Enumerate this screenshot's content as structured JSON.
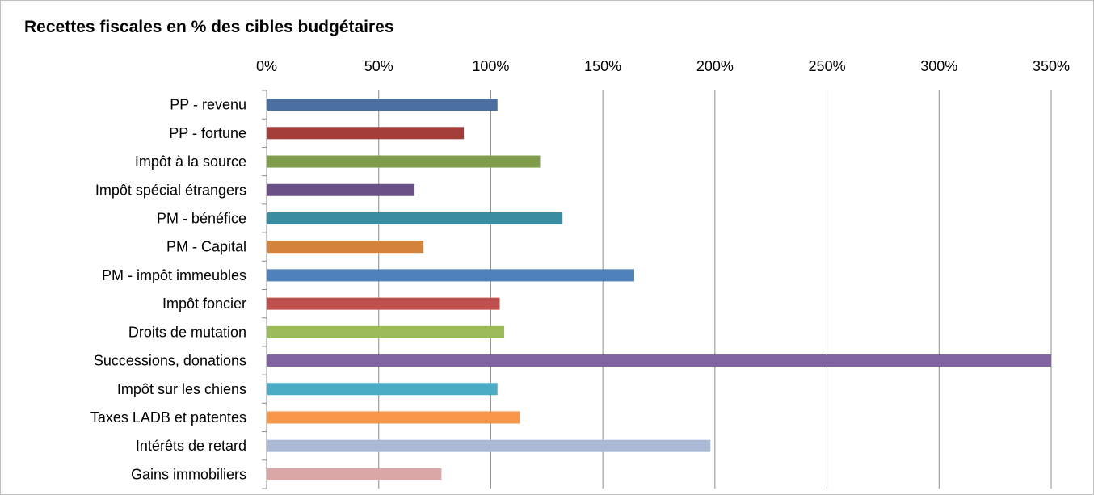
{
  "chart_data": {
    "type": "bar",
    "orientation": "horizontal",
    "title": "Recettes fiscales en % des cibles budgétaires",
    "xlabel": "",
    "ylabel": "",
    "xlim": [
      0,
      350
    ],
    "x_ticks": [
      "0%",
      "50%",
      "100%",
      "150%",
      "200%",
      "250%",
      "300%",
      "350%"
    ],
    "x_tick_values": [
      0,
      50,
      100,
      150,
      200,
      250,
      300,
      350
    ],
    "axis_position": "top",
    "grid": true,
    "legend": "none",
    "categories": [
      "PP - revenu",
      "PP - fortune",
      "Impôt à la source",
      "Impôt spécial étrangers",
      "PM - bénéfice",
      "PM - Capital",
      "PM - impôt immeubles",
      "Impôt foncier",
      "Droits de mutation",
      "Successions, donations",
      "Impôt sur les chiens",
      "Taxes LADB et patentes",
      "Intérêts de retard",
      "Gains immobiliers"
    ],
    "values": [
      103,
      88,
      122,
      66,
      132,
      70,
      164,
      104,
      106,
      350,
      103,
      113,
      198,
      78
    ],
    "colors": [
      "#4a6fa0",
      "#a33e3b",
      "#7f9c4a",
      "#6a5085",
      "#3a8da0",
      "#d4833a",
      "#4f81bd",
      "#c0504d",
      "#9bbb59",
      "#8064a2",
      "#4bacc6",
      "#f79646",
      "#aab9d6",
      "#d9a7a6"
    ]
  }
}
